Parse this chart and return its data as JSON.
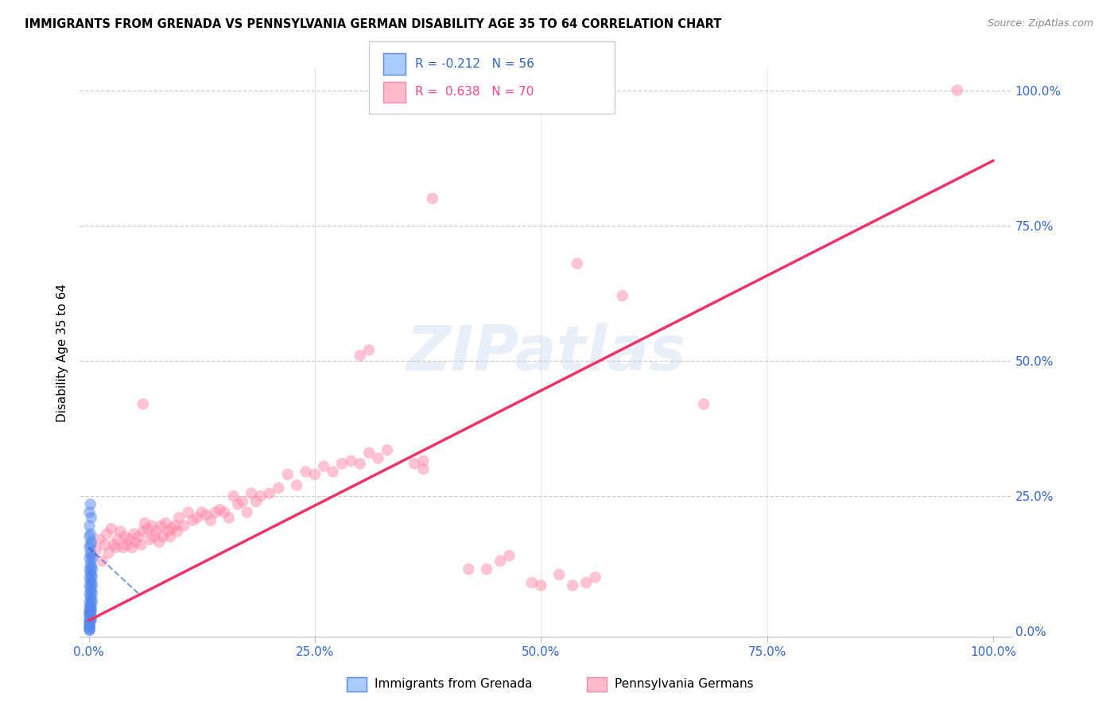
{
  "title": "IMMIGRANTS FROM GRENADA VS PENNSYLVANIA GERMAN DISABILITY AGE 35 TO 64 CORRELATION CHART",
  "source": "Source: ZipAtlas.com",
  "ylabel": "Disability Age 35 to 64",
  "xlim": [
    0.0,
    1.0
  ],
  "ylim": [
    0.0,
    1.0
  ],
  "xticks": [
    0.0,
    0.25,
    0.5,
    0.75,
    1.0
  ],
  "yticks": [
    0.0,
    0.25,
    0.5,
    0.75,
    1.0
  ],
  "xticklabels": [
    "0.0%",
    "25.0%",
    "50.0%",
    "75.0%",
    "100.0%"
  ],
  "yticklabels": [
    "0.0%",
    "25.0%",
    "50.0%",
    "75.0%",
    "100.0%"
  ],
  "watermark": "ZIPatlas",
  "blue_color": "#5588ee",
  "pink_color": "#ff88aa",
  "blue_line_color": "#3355bb",
  "pink_line_color": "#ee3366",
  "blue_line": [
    [
      0.0,
      0.155
    ],
    [
      0.055,
      0.07
    ]
  ],
  "pink_line": [
    [
      0.0,
      0.02
    ],
    [
      1.0,
      0.87
    ]
  ],
  "blue_points": [
    [
      0.001,
      0.22
    ],
    [
      0.002,
      0.235
    ],
    [
      0.003,
      0.21
    ],
    [
      0.001,
      0.195
    ],
    [
      0.002,
      0.18
    ],
    [
      0.003,
      0.165
    ],
    [
      0.001,
      0.175
    ],
    [
      0.002,
      0.16
    ],
    [
      0.001,
      0.155
    ],
    [
      0.002,
      0.145
    ],
    [
      0.003,
      0.14
    ],
    [
      0.004,
      0.135
    ],
    [
      0.001,
      0.135
    ],
    [
      0.002,
      0.125
    ],
    [
      0.003,
      0.12
    ],
    [
      0.004,
      0.115
    ],
    [
      0.001,
      0.115
    ],
    [
      0.002,
      0.11
    ],
    [
      0.003,
      0.105
    ],
    [
      0.004,
      0.1
    ],
    [
      0.001,
      0.1
    ],
    [
      0.002,
      0.095
    ],
    [
      0.003,
      0.09
    ],
    [
      0.004,
      0.085
    ],
    [
      0.001,
      0.085
    ],
    [
      0.002,
      0.08
    ],
    [
      0.003,
      0.075
    ],
    [
      0.004,
      0.07
    ],
    [
      0.001,
      0.07
    ],
    [
      0.002,
      0.065
    ],
    [
      0.003,
      0.06
    ],
    [
      0.004,
      0.055
    ],
    [
      0.001,
      0.055
    ],
    [
      0.002,
      0.05
    ],
    [
      0.003,
      0.045
    ],
    [
      0.001,
      0.045
    ],
    [
      0.002,
      0.04
    ],
    [
      0.003,
      0.038
    ],
    [
      0.001,
      0.038
    ],
    [
      0.002,
      0.035
    ],
    [
      0.001,
      0.035
    ],
    [
      0.002,
      0.032
    ],
    [
      0.001,
      0.032
    ],
    [
      0.001,
      0.028
    ],
    [
      0.002,
      0.025
    ],
    [
      0.003,
      0.022
    ],
    [
      0.001,
      0.022
    ],
    [
      0.002,
      0.02
    ],
    [
      0.001,
      0.018
    ],
    [
      0.001,
      0.015
    ],
    [
      0.001,
      0.012
    ],
    [
      0.001,
      0.01
    ],
    [
      0.001,
      0.008
    ],
    [
      0.001,
      0.005
    ],
    [
      0.001,
      0.003
    ],
    [
      0.001,
      0.002
    ]
  ],
  "pink_points": [
    [
      0.008,
      0.15
    ],
    [
      0.012,
      0.17
    ],
    [
      0.015,
      0.13
    ],
    [
      0.018,
      0.16
    ],
    [
      0.02,
      0.18
    ],
    [
      0.022,
      0.145
    ],
    [
      0.025,
      0.19
    ],
    [
      0.028,
      0.16
    ],
    [
      0.03,
      0.155
    ],
    [
      0.032,
      0.17
    ],
    [
      0.035,
      0.185
    ],
    [
      0.038,
      0.155
    ],
    [
      0.04,
      0.175
    ],
    [
      0.042,
      0.16
    ],
    [
      0.045,
      0.17
    ],
    [
      0.048,
      0.155
    ],
    [
      0.05,
      0.18
    ],
    [
      0.052,
      0.165
    ],
    [
      0.055,
      0.175
    ],
    [
      0.058,
      0.16
    ],
    [
      0.06,
      0.185
    ],
    [
      0.062,
      0.2
    ],
    [
      0.065,
      0.19
    ],
    [
      0.068,
      0.17
    ],
    [
      0.07,
      0.195
    ],
    [
      0.072,
      0.175
    ],
    [
      0.075,
      0.185
    ],
    [
      0.078,
      0.165
    ],
    [
      0.08,
      0.195
    ],
    [
      0.082,
      0.175
    ],
    [
      0.085,
      0.2
    ],
    [
      0.088,
      0.185
    ],
    [
      0.09,
      0.175
    ],
    [
      0.092,
      0.19
    ],
    [
      0.095,
      0.195
    ],
    [
      0.098,
      0.185
    ],
    [
      0.1,
      0.21
    ],
    [
      0.105,
      0.195
    ],
    [
      0.11,
      0.22
    ],
    [
      0.115,
      0.205
    ],
    [
      0.12,
      0.21
    ],
    [
      0.125,
      0.22
    ],
    [
      0.13,
      0.215
    ],
    [
      0.135,
      0.205
    ],
    [
      0.14,
      0.22
    ],
    [
      0.145,
      0.225
    ],
    [
      0.15,
      0.22
    ],
    [
      0.155,
      0.21
    ],
    [
      0.16,
      0.25
    ],
    [
      0.165,
      0.235
    ],
    [
      0.17,
      0.24
    ],
    [
      0.175,
      0.22
    ],
    [
      0.18,
      0.255
    ],
    [
      0.185,
      0.24
    ],
    [
      0.19,
      0.25
    ],
    [
      0.2,
      0.255
    ],
    [
      0.21,
      0.265
    ],
    [
      0.22,
      0.29
    ],
    [
      0.23,
      0.27
    ],
    [
      0.24,
      0.295
    ],
    [
      0.25,
      0.29
    ],
    [
      0.26,
      0.305
    ],
    [
      0.27,
      0.295
    ],
    [
      0.28,
      0.31
    ],
    [
      0.29,
      0.315
    ],
    [
      0.3,
      0.31
    ],
    [
      0.31,
      0.33
    ],
    [
      0.32,
      0.32
    ],
    [
      0.33,
      0.335
    ],
    [
      0.06,
      0.42
    ],
    [
      0.37,
      0.3
    ]
  ],
  "pink_outliers": [
    [
      0.38,
      0.8
    ],
    [
      0.54,
      0.68
    ],
    [
      0.59,
      0.62
    ],
    [
      0.31,
      0.52
    ],
    [
      0.3,
      0.51
    ],
    [
      0.68,
      0.42
    ],
    [
      0.36,
      0.31
    ],
    [
      0.37,
      0.315
    ],
    [
      0.96,
      1.0
    ],
    [
      0.42,
      0.115
    ],
    [
      0.44,
      0.115
    ],
    [
      0.455,
      0.13
    ],
    [
      0.465,
      0.14
    ],
    [
      0.49,
      0.09
    ],
    [
      0.5,
      0.085
    ],
    [
      0.52,
      0.105
    ],
    [
      0.535,
      0.085
    ],
    [
      0.55,
      0.09
    ],
    [
      0.56,
      0.1
    ]
  ]
}
